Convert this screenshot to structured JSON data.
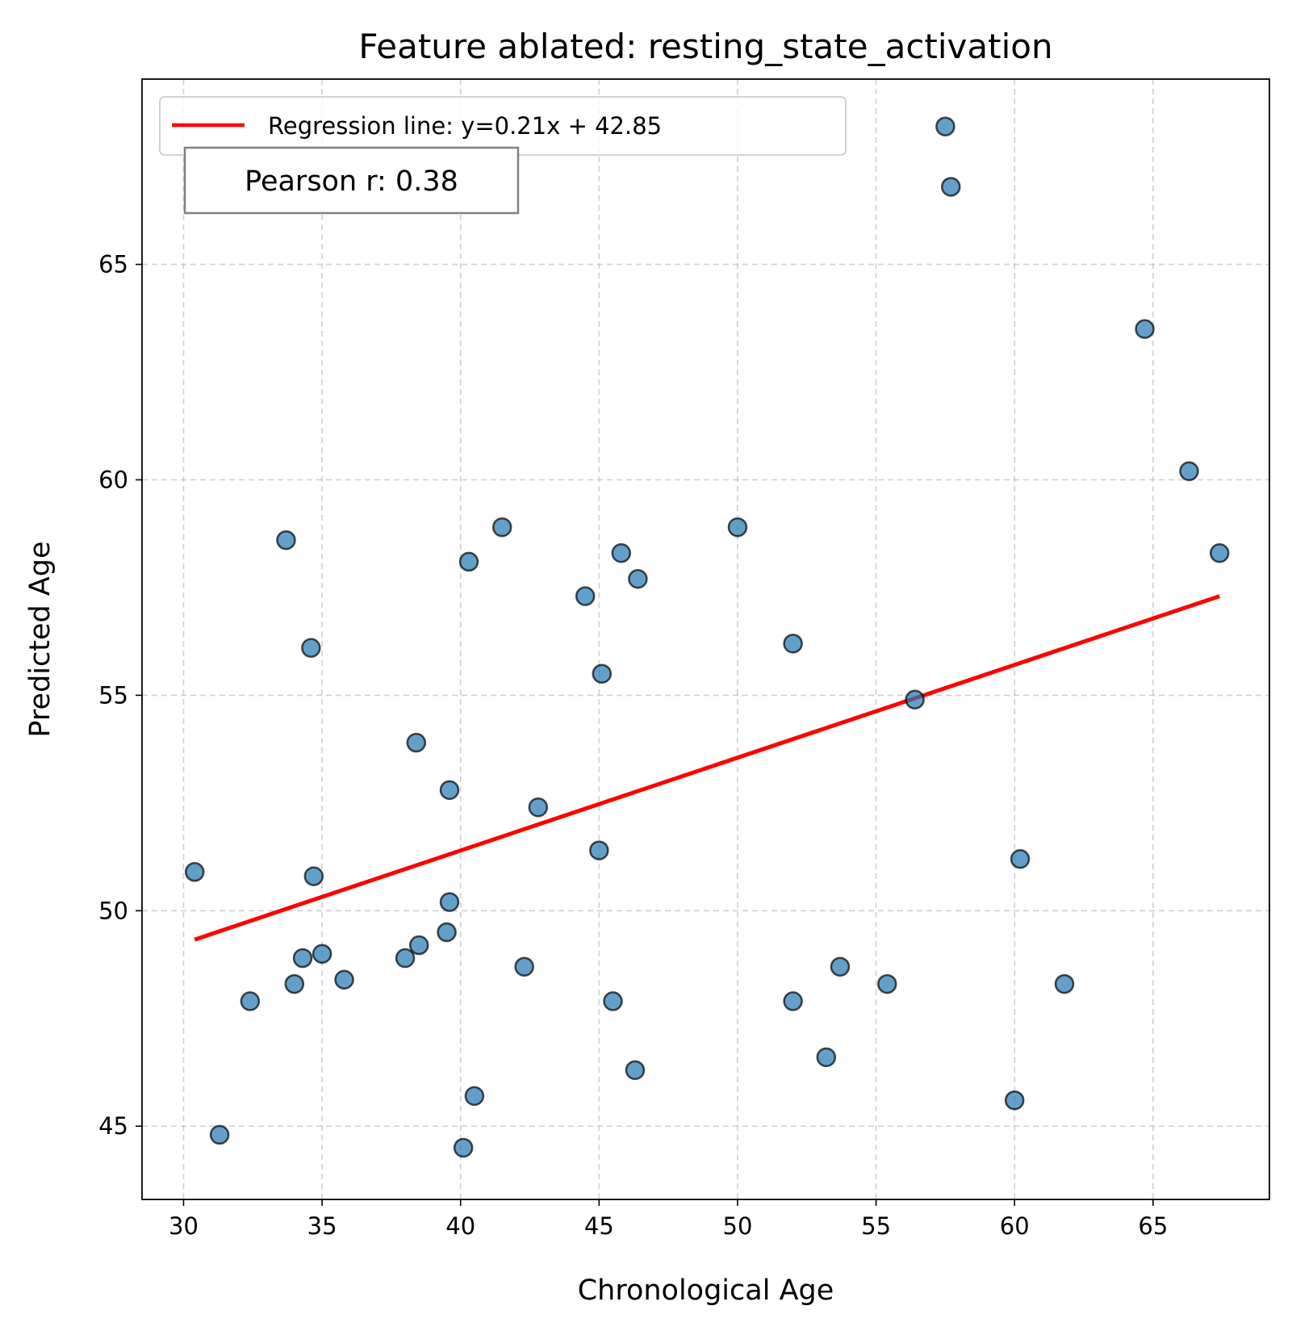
{
  "chart_data": {
    "type": "scatter",
    "title": "Feature ablated: resting_state_activation",
    "xlabel": "Chronological Age",
    "ylabel": "Predicted Age",
    "xlim": [
      28.5,
      69.2
    ],
    "ylim": [
      43.3,
      69.3
    ],
    "xticks": [
      30,
      35,
      40,
      45,
      50,
      55,
      60,
      65
    ],
    "yticks": [
      45,
      50,
      55,
      60,
      65
    ],
    "grid": true,
    "legend_position": "upper-left",
    "series": [
      {
        "name": "",
        "type": "scatter",
        "color": "#1f77b4",
        "points": [
          {
            "x": 57.5,
            "y": 68.2
          },
          {
            "x": 57.7,
            "y": 66.8
          },
          {
            "x": 64.7,
            "y": 63.5
          },
          {
            "x": 66.3,
            "y": 60.2
          },
          {
            "x": 67.4,
            "y": 58.3
          },
          {
            "x": 33.7,
            "y": 58.6
          },
          {
            "x": 41.5,
            "y": 58.9
          },
          {
            "x": 50.0,
            "y": 58.9
          },
          {
            "x": 40.3,
            "y": 58.1
          },
          {
            "x": 45.8,
            "y": 58.3
          },
          {
            "x": 46.4,
            "y": 57.7
          },
          {
            "x": 44.5,
            "y": 57.3
          },
          {
            "x": 34.6,
            "y": 56.1
          },
          {
            "x": 52.0,
            "y": 56.2
          },
          {
            "x": 45.1,
            "y": 55.5
          },
          {
            "x": 56.4,
            "y": 54.9
          },
          {
            "x": 38.4,
            "y": 53.9
          },
          {
            "x": 39.6,
            "y": 52.8
          },
          {
            "x": 42.8,
            "y": 52.4
          },
          {
            "x": 45.0,
            "y": 51.4
          },
          {
            "x": 60.2,
            "y": 51.2
          },
          {
            "x": 30.4,
            "y": 50.9
          },
          {
            "x": 34.7,
            "y": 50.8
          },
          {
            "x": 39.6,
            "y": 50.2
          },
          {
            "x": 39.5,
            "y": 49.5
          },
          {
            "x": 38.5,
            "y": 49.2
          },
          {
            "x": 35.0,
            "y": 49.0
          },
          {
            "x": 34.3,
            "y": 48.9
          },
          {
            "x": 38.0,
            "y": 48.9
          },
          {
            "x": 53.7,
            "y": 48.7
          },
          {
            "x": 42.3,
            "y": 48.7
          },
          {
            "x": 34.0,
            "y": 48.3
          },
          {
            "x": 35.8,
            "y": 48.4
          },
          {
            "x": 55.4,
            "y": 48.3
          },
          {
            "x": 61.8,
            "y": 48.3
          },
          {
            "x": 32.4,
            "y": 47.9
          },
          {
            "x": 45.5,
            "y": 47.9
          },
          {
            "x": 52.0,
            "y": 47.9
          },
          {
            "x": 53.2,
            "y": 46.6
          },
          {
            "x": 46.3,
            "y": 46.3
          },
          {
            "x": 40.5,
            "y": 45.7
          },
          {
            "x": 60.0,
            "y": 45.6
          },
          {
            "x": 31.3,
            "y": 44.8
          },
          {
            "x": 40.1,
            "y": 44.5
          }
        ]
      },
      {
        "name": "Regression line: y=0.21x + 42.85",
        "type": "line",
        "color": "#ff0000",
        "points": [
          {
            "x": 30.4,
            "y": 49.33
          },
          {
            "x": 67.4,
            "y": 57.3
          }
        ]
      }
    ],
    "annotations": [
      {
        "text": "Pearson r: 0.38"
      }
    ]
  }
}
